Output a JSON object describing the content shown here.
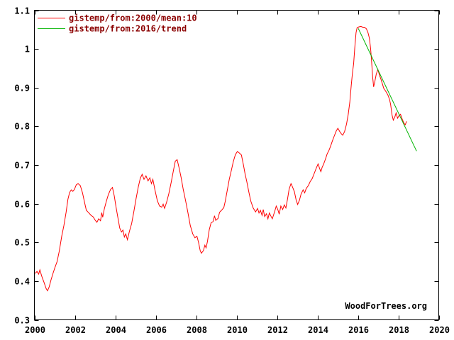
{
  "watermark": "WoodForTrees.org",
  "legend": {
    "position": "top-left",
    "text_color": "#8b0000",
    "entries": [
      {
        "label": "gistemp/from:2000/mean:10",
        "color": "#ff0000"
      },
      {
        "label": "gistemp/from:2016/trend",
        "color": "#00b400"
      }
    ]
  },
  "chart_data": {
    "type": "line",
    "title": "",
    "xlabel": "",
    "ylabel": "",
    "grid": false,
    "legend_position": "top-left",
    "xlim": [
      2000,
      2020
    ],
    "ylim": [
      0.3,
      1.1
    ],
    "x_ticks": [
      {
        "value": 2000,
        "label": "2000"
      },
      {
        "value": 2002,
        "label": "2002"
      },
      {
        "value": 2004,
        "label": "2004"
      },
      {
        "value": 2006,
        "label": "2006"
      },
      {
        "value": 2008,
        "label": "2008"
      },
      {
        "value": 2010,
        "label": "2010"
      },
      {
        "value": 2012,
        "label": "2012"
      },
      {
        "value": 2014,
        "label": "2014"
      },
      {
        "value": 2016,
        "label": "2016"
      },
      {
        "value": 2018,
        "label": "2018"
      },
      {
        "value": 2020,
        "label": "2020"
      }
    ],
    "y_ticks": [
      {
        "value": 0.3,
        "label": "0.3"
      },
      {
        "value": 0.4,
        "label": "0.4"
      },
      {
        "value": 0.5,
        "label": "0.5"
      },
      {
        "value": 0.6,
        "label": "0.6"
      },
      {
        "value": 0.7,
        "label": "0.7"
      },
      {
        "value": 0.8,
        "label": "0.8"
      },
      {
        "value": 0.9,
        "label": "0.9"
      },
      {
        "value": 1.0,
        "label": "1"
      },
      {
        "value": 1.1,
        "label": "1.1"
      }
    ],
    "series": [
      {
        "name": "gistemp/from:2000/mean:10",
        "color": "#ff0000",
        "points": [
          [
            2000.04,
            0.42
          ],
          [
            2000.13,
            0.425
          ],
          [
            2000.21,
            0.418
          ],
          [
            2000.27,
            0.429
          ],
          [
            2000.36,
            0.413
          ],
          [
            2000.48,
            0.396
          ],
          [
            2000.58,
            0.381
          ],
          [
            2000.65,
            0.375
          ],
          [
            2000.73,
            0.385
          ],
          [
            2000.82,
            0.403
          ],
          [
            2000.92,
            0.42
          ],
          [
            2001.02,
            0.436
          ],
          [
            2001.12,
            0.45
          ],
          [
            2001.23,
            0.478
          ],
          [
            2001.35,
            0.516
          ],
          [
            2001.46,
            0.544
          ],
          [
            2001.57,
            0.578
          ],
          [
            2001.66,
            0.612
          ],
          [
            2001.74,
            0.629
          ],
          [
            2001.82,
            0.636
          ],
          [
            2001.9,
            0.632
          ],
          [
            2001.98,
            0.637
          ],
          [
            2002.07,
            0.649
          ],
          [
            2002.16,
            0.652
          ],
          [
            2002.27,
            0.647
          ],
          [
            2002.38,
            0.628
          ],
          [
            2002.49,
            0.601
          ],
          [
            2002.57,
            0.583
          ],
          [
            2002.68,
            0.577
          ],
          [
            2002.8,
            0.57
          ],
          [
            2002.91,
            0.566
          ],
          [
            2003.0,
            0.558
          ],
          [
            2003.09,
            0.552
          ],
          [
            2003.18,
            0.561
          ],
          [
            2003.27,
            0.556
          ],
          [
            2003.33,
            0.577
          ],
          [
            2003.38,
            0.565
          ],
          [
            2003.46,
            0.587
          ],
          [
            2003.56,
            0.607
          ],
          [
            2003.66,
            0.624
          ],
          [
            2003.77,
            0.637
          ],
          [
            2003.86,
            0.642
          ],
          [
            2003.95,
            0.62
          ],
          [
            2004.04,
            0.591
          ],
          [
            2004.13,
            0.564
          ],
          [
            2004.22,
            0.537
          ],
          [
            2004.31,
            0.527
          ],
          [
            2004.38,
            0.532
          ],
          [
            2004.45,
            0.514
          ],
          [
            2004.52,
            0.522
          ],
          [
            2004.6,
            0.507
          ],
          [
            2004.7,
            0.529
          ],
          [
            2004.81,
            0.549
          ],
          [
            2004.92,
            0.58
          ],
          [
            2005.03,
            0.614
          ],
          [
            2005.14,
            0.644
          ],
          [
            2005.24,
            0.666
          ],
          [
            2005.33,
            0.676
          ],
          [
            2005.42,
            0.663
          ],
          [
            2005.52,
            0.672
          ],
          [
            2005.62,
            0.659
          ],
          [
            2005.71,
            0.667
          ],
          [
            2005.79,
            0.652
          ],
          [
            2005.86,
            0.663
          ],
          [
            2005.96,
            0.636
          ],
          [
            2006.08,
            0.608
          ],
          [
            2006.19,
            0.594
          ],
          [
            2006.3,
            0.591
          ],
          [
            2006.37,
            0.599
          ],
          [
            2006.44,
            0.588
          ],
          [
            2006.54,
            0.604
          ],
          [
            2006.65,
            0.626
          ],
          [
            2006.77,
            0.656
          ],
          [
            2006.87,
            0.684
          ],
          [
            2006.97,
            0.71
          ],
          [
            2007.06,
            0.714
          ],
          [
            2007.15,
            0.694
          ],
          [
            2007.26,
            0.667
          ],
          [
            2007.36,
            0.637
          ],
          [
            2007.47,
            0.61
          ],
          [
            2007.59,
            0.578
          ],
          [
            2007.71,
            0.544
          ],
          [
            2007.83,
            0.522
          ],
          [
            2007.94,
            0.512
          ],
          [
            2008.04,
            0.516
          ],
          [
            2008.12,
            0.5
          ],
          [
            2008.2,
            0.479
          ],
          [
            2008.26,
            0.472
          ],
          [
            2008.36,
            0.479
          ],
          [
            2008.43,
            0.493
          ],
          [
            2008.49,
            0.486
          ],
          [
            2008.56,
            0.503
          ],
          [
            2008.65,
            0.533
          ],
          [
            2008.74,
            0.551
          ],
          [
            2008.84,
            0.554
          ],
          [
            2008.91,
            0.569
          ],
          [
            2008.97,
            0.557
          ],
          [
            2009.08,
            0.562
          ],
          [
            2009.16,
            0.578
          ],
          [
            2009.27,
            0.584
          ],
          [
            2009.37,
            0.59
          ],
          [
            2009.44,
            0.606
          ],
          [
            2009.54,
            0.635
          ],
          [
            2009.64,
            0.663
          ],
          [
            2009.74,
            0.686
          ],
          [
            2009.84,
            0.709
          ],
          [
            2009.94,
            0.727
          ],
          [
            2010.04,
            0.735
          ],
          [
            2010.14,
            0.731
          ],
          [
            2010.24,
            0.726
          ],
          [
            2010.34,
            0.7
          ],
          [
            2010.42,
            0.677
          ],
          [
            2010.5,
            0.658
          ],
          [
            2010.6,
            0.632
          ],
          [
            2010.7,
            0.607
          ],
          [
            2010.82,
            0.589
          ],
          [
            2010.94,
            0.579
          ],
          [
            2011.04,
            0.588
          ],
          [
            2011.11,
            0.576
          ],
          [
            2011.18,
            0.583
          ],
          [
            2011.26,
            0.57
          ],
          [
            2011.32,
            0.585
          ],
          [
            2011.39,
            0.567
          ],
          [
            2011.48,
            0.574
          ],
          [
            2011.55,
            0.561
          ],
          [
            2011.62,
            0.576
          ],
          [
            2011.71,
            0.567
          ],
          [
            2011.77,
            0.561
          ],
          [
            2011.89,
            0.581
          ],
          [
            2011.96,
            0.594
          ],
          [
            2012.04,
            0.585
          ],
          [
            2012.11,
            0.573
          ],
          [
            2012.19,
            0.594
          ],
          [
            2012.28,
            0.585
          ],
          [
            2012.36,
            0.597
          ],
          [
            2012.44,
            0.589
          ],
          [
            2012.52,
            0.612
          ],
          [
            2012.6,
            0.638
          ],
          [
            2012.69,
            0.652
          ],
          [
            2012.77,
            0.643
          ],
          [
            2012.86,
            0.631
          ],
          [
            2012.94,
            0.611
          ],
          [
            2013.02,
            0.598
          ],
          [
            2013.11,
            0.609
          ],
          [
            2013.19,
            0.625
          ],
          [
            2013.29,
            0.636
          ],
          [
            2013.37,
            0.628
          ],
          [
            2013.45,
            0.64
          ],
          [
            2013.55,
            0.647
          ],
          [
            2013.64,
            0.657
          ],
          [
            2013.74,
            0.665
          ],
          [
            2013.84,
            0.678
          ],
          [
            2013.94,
            0.692
          ],
          [
            2014.03,
            0.703
          ],
          [
            2014.11,
            0.691
          ],
          [
            2014.17,
            0.683
          ],
          [
            2014.23,
            0.694
          ],
          [
            2014.31,
            0.703
          ],
          [
            2014.4,
            0.716
          ],
          [
            2014.48,
            0.729
          ],
          [
            2014.56,
            0.737
          ],
          [
            2014.64,
            0.747
          ],
          [
            2014.73,
            0.761
          ],
          [
            2014.83,
            0.775
          ],
          [
            2014.93,
            0.788
          ],
          [
            2015.01,
            0.795
          ],
          [
            2015.1,
            0.787
          ],
          [
            2015.18,
            0.781
          ],
          [
            2015.25,
            0.777
          ],
          [
            2015.34,
            0.786
          ],
          [
            2015.44,
            0.806
          ],
          [
            2015.52,
            0.83
          ],
          [
            2015.6,
            0.862
          ],
          [
            2015.67,
            0.905
          ],
          [
            2015.73,
            0.937
          ],
          [
            2015.79,
            0.962
          ],
          [
            2015.85,
            1.005
          ],
          [
            2015.91,
            1.042
          ],
          [
            2015.96,
            1.055
          ],
          [
            2016.05,
            1.057
          ],
          [
            2016.15,
            1.058
          ],
          [
            2016.25,
            1.056
          ],
          [
            2016.33,
            1.056
          ],
          [
            2016.42,
            1.052
          ],
          [
            2016.5,
            1.042
          ],
          [
            2016.57,
            1.028
          ],
          [
            2016.63,
            1.0
          ],
          [
            2016.68,
            0.966
          ],
          [
            2016.73,
            0.928
          ],
          [
            2016.78,
            0.902
          ],
          [
            2016.84,
            0.916
          ],
          [
            2016.91,
            0.935
          ],
          [
            2016.99,
            0.947
          ],
          [
            2017.07,
            0.932
          ],
          [
            2017.14,
            0.922
          ],
          [
            2017.21,
            0.91
          ],
          [
            2017.28,
            0.898
          ],
          [
            2017.35,
            0.893
          ],
          [
            2017.42,
            0.887
          ],
          [
            2017.5,
            0.879
          ],
          [
            2017.57,
            0.869
          ],
          [
            2017.62,
            0.856
          ],
          [
            2017.69,
            0.829
          ],
          [
            2017.75,
            0.816
          ],
          [
            2017.83,
            0.825
          ],
          [
            2017.89,
            0.835
          ],
          [
            2017.96,
            0.821
          ],
          [
            2018.04,
            0.828
          ],
          [
            2018.11,
            0.831
          ],
          [
            2018.19,
            0.819
          ],
          [
            2018.27,
            0.809
          ],
          [
            2018.34,
            0.804
          ],
          [
            2018.41,
            0.813
          ]
        ]
      },
      {
        "name": "gistemp/from:2016/trend",
        "color": "#00b400",
        "points": [
          [
            2016.02,
            1.053
          ],
          [
            2018.9,
            0.736
          ]
        ]
      }
    ]
  }
}
